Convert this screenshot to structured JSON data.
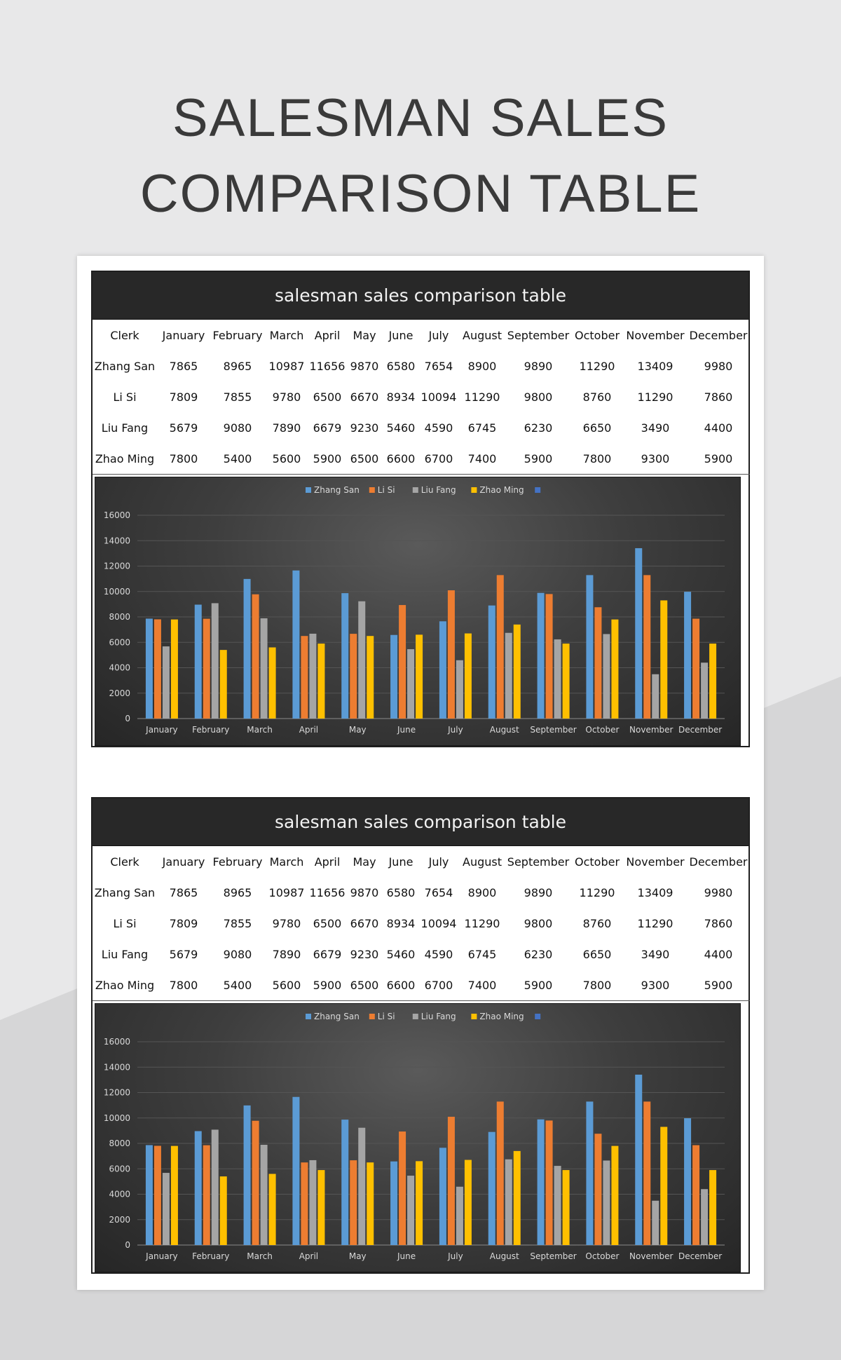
{
  "page": {
    "title_line1": "SALESMAN SALES",
    "title_line2": "COMPARISON TABLE"
  },
  "colors": {
    "zhang_san": "#5b9bd5",
    "li_si": "#ed7d31",
    "liu_fang": "#a5a5a5",
    "zhao_ming": "#ffc000",
    "extra_legend": "#4472c4"
  },
  "sheets": [
    {
      "title": "salesman sales comparison table",
      "columns": [
        "Clerk",
        "January",
        "February",
        "March",
        "April",
        "May",
        "June",
        "July",
        "August",
        "September",
        "October",
        "November",
        "December"
      ],
      "rows": [
        [
          "Zhang San",
          "7865",
          "8965",
          "10987",
          "11656",
          "9870",
          "6580",
          "7654",
          "8900",
          "9890",
          "11290",
          "13409",
          "9980"
        ],
        [
          "Li Si",
          "7809",
          "7855",
          "9780",
          "6500",
          "6670",
          "8934",
          "10094",
          "11290",
          "9800",
          "8760",
          "11290",
          "7860"
        ],
        [
          "Liu Fang",
          "5679",
          "9080",
          "7890",
          "6679",
          "9230",
          "5460",
          "4590",
          "6745",
          "6230",
          "6650",
          "3490",
          "4400"
        ],
        [
          "Zhao Ming",
          "7800",
          "5400",
          "5600",
          "5900",
          "6500",
          "6600",
          "6700",
          "7400",
          "5900",
          "7800",
          "9300",
          "5900"
        ]
      ]
    },
    {
      "title": "salesman sales comparison table",
      "columns": [
        "Clerk",
        "January",
        "February",
        "March",
        "April",
        "May",
        "June",
        "July",
        "August",
        "September",
        "October",
        "November",
        "December"
      ],
      "rows": [
        [
          "Zhang San",
          "7865",
          "8965",
          "10987",
          "11656",
          "9870",
          "6580",
          "7654",
          "8900",
          "9890",
          "11290",
          "13409",
          "9980"
        ],
        [
          "Li Si",
          "7809",
          "7855",
          "9780",
          "6500",
          "6670",
          "8934",
          "10094",
          "11290",
          "9800",
          "8760",
          "11290",
          "7860"
        ],
        [
          "Liu Fang",
          "5679",
          "9080",
          "7890",
          "6679",
          "9230",
          "5460",
          "4590",
          "6745",
          "6230",
          "6650",
          "3490",
          "4400"
        ],
        [
          "Zhao Ming",
          "7800",
          "5400",
          "5600",
          "5900",
          "6500",
          "6600",
          "6700",
          "7400",
          "5900",
          "7800",
          "9300",
          "5900"
        ]
      ]
    }
  ],
  "chart_data": [
    {
      "type": "bar",
      "categories": [
        "January",
        "February",
        "March",
        "April",
        "May",
        "June",
        "July",
        "August",
        "September",
        "October",
        "November",
        "December"
      ],
      "series": [
        {
          "name": "Zhang San",
          "color": "#5b9bd5",
          "values": [
            7865,
            8965,
            10987,
            11656,
            9870,
            6580,
            7654,
            8900,
            9890,
            11290,
            13409,
            9980
          ]
        },
        {
          "name": "Li Si",
          "color": "#ed7d31",
          "values": [
            7809,
            7855,
            9780,
            6500,
            6670,
            8934,
            10094,
            11290,
            9800,
            8760,
            11290,
            7860
          ]
        },
        {
          "name": "Liu Fang",
          "color": "#a5a5a5",
          "values": [
            5679,
            9080,
            7890,
            6679,
            9230,
            5460,
            4590,
            6745,
            6230,
            6650,
            3490,
            4400
          ]
        },
        {
          "name": "Zhao Ming",
          "color": "#ffc000",
          "values": [
            7800,
            5400,
            5600,
            5900,
            6500,
            6600,
            6700,
            7400,
            5900,
            7800,
            9300,
            5900
          ]
        }
      ],
      "legend_extra_color": "#4472c4",
      "legend": "top",
      "ylim": [
        0,
        16000
      ],
      "yticks": [
        0,
        2000,
        4000,
        6000,
        8000,
        10000,
        12000,
        14000,
        16000
      ],
      "grid": true
    },
    {
      "type": "bar",
      "categories": [
        "January",
        "February",
        "March",
        "April",
        "May",
        "June",
        "July",
        "August",
        "September",
        "October",
        "November",
        "December"
      ],
      "series": [
        {
          "name": "Zhang San",
          "color": "#5b9bd5",
          "values": [
            7865,
            8965,
            10987,
            11656,
            9870,
            6580,
            7654,
            8900,
            9890,
            11290,
            13409,
            9980
          ]
        },
        {
          "name": "Li Si",
          "color": "#ed7d31",
          "values": [
            7809,
            7855,
            9780,
            6500,
            6670,
            8934,
            10094,
            11290,
            9800,
            8760,
            11290,
            7860
          ]
        },
        {
          "name": "Liu Fang",
          "color": "#a5a5a5",
          "values": [
            5679,
            9080,
            7890,
            6679,
            9230,
            5460,
            4590,
            6745,
            6230,
            6650,
            3490,
            4400
          ]
        },
        {
          "name": "Zhao Ming",
          "color": "#ffc000",
          "values": [
            7800,
            5400,
            5600,
            5900,
            6500,
            6600,
            6700,
            7400,
            5900,
            7800,
            9300,
            5900
          ]
        }
      ],
      "legend_extra_color": "#4472c4",
      "legend": "top",
      "ylim": [
        0,
        16000
      ],
      "yticks": [
        0,
        2000,
        4000,
        6000,
        8000,
        10000,
        12000,
        14000,
        16000
      ],
      "grid": true
    }
  ]
}
